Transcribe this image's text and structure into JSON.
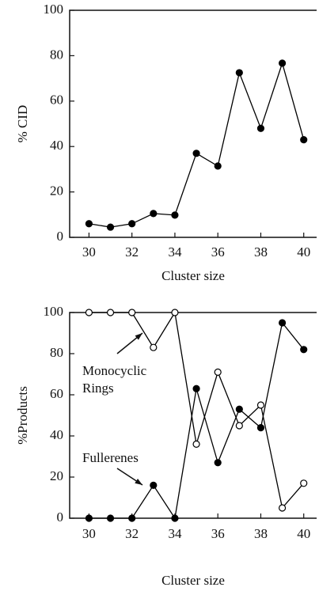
{
  "chart_data": [
    {
      "type": "line",
      "xlabel": "Cluster size",
      "ylabel": "% CID",
      "x": [
        30,
        31,
        32,
        33,
        34,
        35,
        36,
        37,
        38,
        39,
        40
      ],
      "series": [
        {
          "color": "#000000",
          "marker": "filled",
          "values": [
            6,
            4.5,
            6,
            10.5,
            9.8,
            37,
            31.4,
            72.5,
            48,
            76.7,
            43
          ]
        }
      ],
      "xlim": [
        29.1,
        40.6
      ],
      "xticks": [
        30,
        32,
        34,
        36,
        38,
        40
      ],
      "ylim": [
        0,
        100
      ],
      "yticks": [
        0,
        20,
        40,
        60,
        80,
        100
      ]
    },
    {
      "type": "line",
      "xlabel": "Cluster size",
      "ylabel": "%Products",
      "x": [
        30,
        31,
        32,
        33,
        34,
        35,
        36,
        37,
        38,
        39,
        40
      ],
      "series": [
        {
          "name": "Fullerenes",
          "color": "#000000",
          "marker": "filled",
          "values": [
            0,
            0,
            0,
            16,
            0,
            63,
            27,
            53,
            44,
            95,
            82
          ]
        },
        {
          "name": "Monocyclic Rings",
          "color": "#000000",
          "marker": "open",
          "values": [
            100,
            100,
            100,
            83,
            100,
            36,
            71,
            45,
            55,
            5,
            17
          ]
        }
      ],
      "annotations": [
        {
          "lines": [
            "Monocyclic",
            "Rings"
          ]
        },
        {
          "lines": [
            "Fullerenes"
          ]
        }
      ],
      "xlim": [
        29.1,
        40.6
      ],
      "xticks": [
        30,
        32,
        34,
        36,
        38,
        40
      ],
      "ylim": [
        0,
        100
      ],
      "yticks": [
        0,
        20,
        40,
        60,
        80,
        100
      ]
    }
  ]
}
